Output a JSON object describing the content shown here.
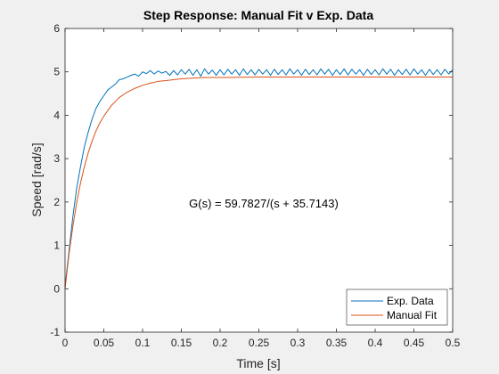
{
  "chart_data": {
    "type": "line",
    "title": "Step Response: Manual Fit v Exp. Data",
    "xlabel": "Time [s]",
    "ylabel": "Speed [rad/s]",
    "xlim": [
      0,
      0.5
    ],
    "ylim": [
      -1,
      6
    ],
    "x_ticks": [
      "0",
      "0.05",
      "0.1",
      "0.15",
      "0.2",
      "0.25",
      "0.3",
      "0.35",
      "0.4",
      "0.45",
      "0.5"
    ],
    "y_ticks": [
      "-1",
      "0",
      "1",
      "2",
      "3",
      "4",
      "5",
      "6"
    ],
    "grid": false,
    "legend_position": "bottom-right",
    "annotation": "G(s) = 59.7827/(s + 35.7143)",
    "series": [
      {
        "name": "Exp. Data",
        "color": "#0072BD",
        "x": [
          0,
          0.005,
          0.01,
          0.015,
          0.02,
          0.025,
          0.03,
          0.035,
          0.04,
          0.045,
          0.05,
          0.055,
          0.06,
          0.065,
          0.07,
          0.075,
          0.08,
          0.085,
          0.09,
          0.095,
          0.1,
          0.105,
          0.11,
          0.115,
          0.12,
          0.125,
          0.13,
          0.135,
          0.14,
          0.145,
          0.15,
          0.155,
          0.16,
          0.165,
          0.17,
          0.175,
          0.18,
          0.185,
          0.19,
          0.195,
          0.2,
          0.205,
          0.21,
          0.215,
          0.22,
          0.225,
          0.23,
          0.235,
          0.24,
          0.245,
          0.25,
          0.255,
          0.26,
          0.265,
          0.27,
          0.275,
          0.28,
          0.285,
          0.29,
          0.295,
          0.3,
          0.305,
          0.31,
          0.315,
          0.32,
          0.325,
          0.33,
          0.335,
          0.34,
          0.345,
          0.35,
          0.355,
          0.36,
          0.365,
          0.37,
          0.375,
          0.38,
          0.385,
          0.39,
          0.395,
          0.4,
          0.405,
          0.41,
          0.415,
          0.42,
          0.425,
          0.43,
          0.435,
          0.44,
          0.445,
          0.45,
          0.455,
          0.46,
          0.465,
          0.47,
          0.475,
          0.48,
          0.485,
          0.49,
          0.495,
          0.5
        ],
        "y": [
          0.05,
          0.85,
          1.65,
          2.32,
          2.82,
          3.28,
          3.62,
          3.92,
          4.16,
          4.32,
          4.45,
          4.58,
          4.65,
          4.72,
          4.82,
          4.84,
          4.88,
          4.92,
          4.95,
          4.9,
          5.0,
          4.96,
          5.03,
          4.95,
          5.02,
          4.97,
          5.01,
          4.92,
          5.03,
          4.93,
          5.05,
          4.95,
          5.06,
          4.92,
          5.05,
          4.9,
          5.07,
          4.95,
          5.04,
          4.92,
          5.05,
          4.93,
          5.06,
          4.95,
          5.05,
          4.92,
          5.07,
          4.94,
          5.05,
          4.93,
          5.06,
          4.95,
          5.05,
          4.92,
          5.06,
          4.94,
          5.05,
          4.93,
          5.07,
          4.95,
          5.05,
          4.92,
          5.06,
          4.94,
          5.05,
          4.93,
          5.07,
          4.95,
          5.06,
          4.92,
          5.05,
          4.94,
          5.07,
          4.93,
          5.06,
          4.95,
          5.05,
          4.92,
          5.06,
          4.94,
          5.05,
          4.93,
          5.07,
          4.95,
          5.06,
          4.92,
          5.05,
          4.94,
          5.06,
          4.93,
          5.07,
          4.95,
          5.05,
          4.92,
          5.06,
          4.94,
          5.05,
          4.93,
          5.06,
          4.95,
          5.05
        ]
      },
      {
        "name": "Manual Fit",
        "color": "#D95319",
        "x": [
          0,
          0.005,
          0.01,
          0.015,
          0.02,
          0.025,
          0.03,
          0.035,
          0.04,
          0.045,
          0.05,
          0.06,
          0.07,
          0.08,
          0.09,
          0.1,
          0.11,
          0.12,
          0.13,
          0.14,
          0.15,
          0.16,
          0.17,
          0.18,
          0.2,
          0.25,
          0.3,
          0.35,
          0.4,
          0.45,
          0.5
        ],
        "y": [
          0,
          0.78,
          1.43,
          1.98,
          2.44,
          2.82,
          3.14,
          3.41,
          3.64,
          3.83,
          3.98,
          4.23,
          4.41,
          4.53,
          4.62,
          4.69,
          4.74,
          4.78,
          4.8,
          4.82,
          4.84,
          4.85,
          4.86,
          4.87,
          4.87,
          4.88,
          4.88,
          4.88,
          4.88,
          4.88,
          4.88
        ]
      }
    ]
  }
}
